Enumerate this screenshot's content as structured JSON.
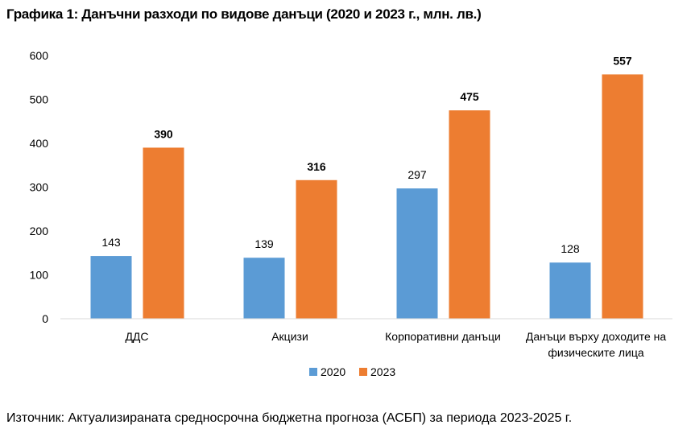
{
  "chart_data": {
    "type": "bar",
    "title": "Графика 1: Данъчни разходи по видове данъци (2020 и 2023 г., млн. лв.)",
    "categories": [
      [
        "ДДС"
      ],
      [
        "Акцизи"
      ],
      [
        "Корпоративни данъци"
      ],
      [
        "Данъци върху доходите на",
        "физическите лица"
      ]
    ],
    "series": [
      {
        "name": "2020",
        "values": [
          143,
          139,
          297,
          128
        ],
        "color": "#5B9BD5",
        "label_bold": false
      },
      {
        "name": "2023",
        "values": [
          390,
          316,
          475,
          557
        ],
        "color": "#ED7D31",
        "label_bold": true
      }
    ],
    "yticks": [
      0,
      100,
      200,
      300,
      400,
      500,
      600
    ],
    "ylim": [
      0,
      600
    ],
    "xlabel": "",
    "ylabel": "",
    "grid": false,
    "legend_position": "bottom"
  },
  "source": "Източник: Актуализираната средносрочна бюджетна прогноза (АСБП) за периода 2023-2025 г."
}
